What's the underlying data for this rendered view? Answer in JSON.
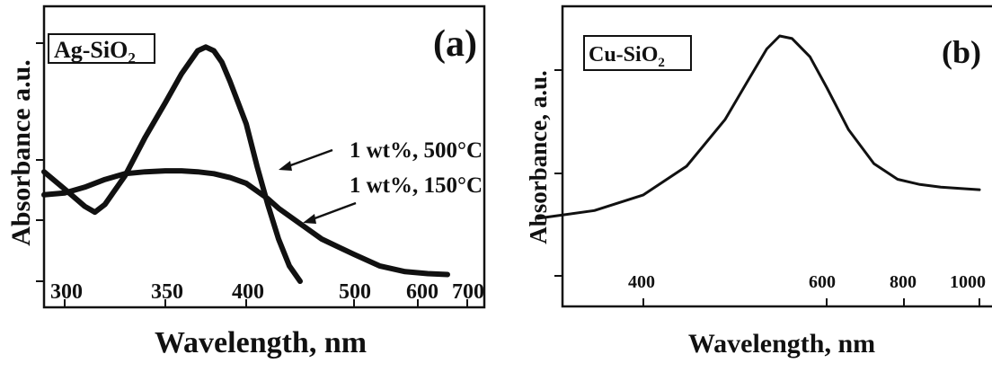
{
  "chart_data": [
    {
      "type": "line",
      "panel_label": "(a)",
      "material_label": "Ag-SiO",
      "material_subscript": "2",
      "xlabel": "Wavelength, nm",
      "ylabel": "Absorbance a.u.",
      "x_ticks": [
        "300",
        "350",
        "400",
        "500",
        "600",
        "700"
      ],
      "series": [
        {
          "name": "1 wt%, 500°C",
          "x": [
            290,
            300,
            310,
            315,
            320,
            330,
            340,
            350,
            360,
            370,
            375,
            380,
            385,
            390,
            400,
            410,
            420,
            430,
            440,
            450
          ],
          "y": [
            0.57,
            0.48,
            0.39,
            0.36,
            0.4,
            0.55,
            0.75,
            0.93,
            1.08,
            1.2,
            1.22,
            1.2,
            1.14,
            1.04,
            0.82,
            0.6,
            0.4,
            0.22,
            0.08,
            0.0
          ]
        },
        {
          "name": "1 wt%, 150°C",
          "x": [
            290,
            300,
            310,
            320,
            330,
            340,
            350,
            360,
            370,
            380,
            390,
            400,
            410,
            420,
            430,
            450,
            470,
            500,
            540,
            580,
            620,
            660
          ],
          "y": [
            0.45,
            0.46,
            0.49,
            0.53,
            0.56,
            0.57,
            0.575,
            0.575,
            0.57,
            0.56,
            0.54,
            0.51,
            0.47,
            0.43,
            0.38,
            0.3,
            0.22,
            0.14,
            0.08,
            0.05,
            0.04,
            0.035
          ]
        }
      ],
      "annotations": [
        {
          "text": "1 wt%, 500°C"
        },
        {
          "text": "1 wt%, 150°C"
        }
      ]
    },
    {
      "type": "line",
      "panel_label": "(b)",
      "material_label": "Cu-SiO",
      "material_subscript": "2",
      "xlabel": "Wavelength, nm",
      "ylabel": "Absorbance, a.u.",
      "x_ticks": [
        "400",
        "600",
        "800",
        "1000"
      ],
      "series": [
        {
          "x": [
            300,
            350,
            400,
            450,
            500,
            530,
            560,
            580,
            600,
            630,
            660,
            700,
            750,
            800,
            850,
            900,
            950,
            1000
          ],
          "y": [
            0.3,
            0.33,
            0.39,
            0.5,
            0.68,
            0.82,
            0.95,
            1.0,
            0.99,
            0.92,
            0.8,
            0.64,
            0.51,
            0.45,
            0.43,
            0.42,
            0.415,
            0.41
          ]
        }
      ]
    }
  ]
}
